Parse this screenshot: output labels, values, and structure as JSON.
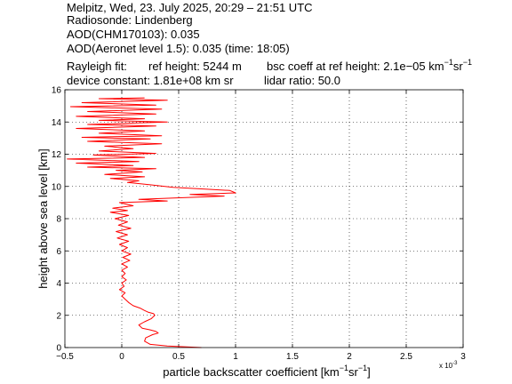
{
  "header": {
    "line1": "Melpitz, Wed, 23. July 2025, 20:29 – 21:51 UTC",
    "line2": "Radiosonde: Lindenberg",
    "line3": "AOD(CHM170103): 0.035",
    "line4": "AOD(Aeronet level 1.5): 0.035   (time: 18:05)",
    "rayleigh_label": "Rayleigh fit:",
    "ref_height": "ref height: 5244 m",
    "bsc_coeff_prefix": "bsc coeff at ref height: 2.1e−05 km",
    "bsc_coeff_sup1": "−1",
    "bsc_coeff_mid": "sr",
    "bsc_coeff_sup2": "−1",
    "device_constant": "device constant: 1.81e+08 km sr",
    "lidar_ratio": "lidar ratio: 50.0"
  },
  "chart_data": {
    "type": "line",
    "xlabel_main": "particle backscatter coefficient [km",
    "xlabel_sup1": "−1",
    "xlabel_mid": "sr",
    "xlabel_sup2": "−1",
    "xlabel_end": "]",
    "ylabel": "height above sea level [km]",
    "x_multiplier": "x 10",
    "x_multiplier_exp": "-3",
    "xlim": [
      -0.5,
      3
    ],
    "ylim": [
      0,
      16
    ],
    "grid": true,
    "x_ticks": [
      -0.5,
      0,
      0.5,
      1,
      1.5,
      2,
      2.5,
      3
    ],
    "x_tick_labels": [
      "−0.5",
      "0",
      "0.5",
      "1",
      "1.5",
      "2",
      "2.5",
      "3"
    ],
    "y_ticks": [
      0,
      2,
      4,
      6,
      8,
      10,
      12,
      14,
      16
    ],
    "y_tick_labels": [
      "0",
      "2",
      "4",
      "6",
      "8",
      "10",
      "12",
      "14",
      "16"
    ],
    "series": [
      {
        "color": "#ff0000",
        "points": [
          [
            0.7,
            0.0
          ],
          [
            0.4,
            0.1
          ],
          [
            0.25,
            0.2
          ],
          [
            0.2,
            0.4
          ],
          [
            0.21,
            0.6
          ],
          [
            0.27,
            0.8
          ],
          [
            0.32,
            0.9
          ],
          [
            0.3,
            1.0
          ],
          [
            0.25,
            1.1
          ],
          [
            0.18,
            1.2
          ],
          [
            0.15,
            1.4
          ],
          [
            0.2,
            1.6
          ],
          [
            0.26,
            1.8
          ],
          [
            0.29,
            2.0
          ],
          [
            0.28,
            2.1
          ],
          [
            0.23,
            2.2
          ],
          [
            0.2,
            2.3
          ],
          [
            0.16,
            2.45
          ],
          [
            0.1,
            2.6
          ],
          [
            0.06,
            2.8
          ],
          [
            0.03,
            3.0
          ],
          [
            0.0,
            3.2
          ],
          [
            0.03,
            3.4
          ],
          [
            -0.02,
            3.6
          ],
          [
            0.02,
            3.8
          ],
          [
            0.0,
            4.0
          ],
          [
            0.04,
            4.2
          ],
          [
            0.0,
            4.4
          ],
          [
            0.03,
            4.6
          ],
          [
            0.0,
            4.8
          ],
          [
            0.05,
            5.0
          ],
          [
            0.0,
            5.2
          ],
          [
            0.07,
            5.4
          ],
          [
            0.01,
            5.6
          ],
          [
            0.08,
            5.8
          ],
          [
            0.0,
            6.0
          ],
          [
            0.05,
            6.2
          ],
          [
            -0.02,
            6.4
          ],
          [
            0.06,
            6.6
          ],
          [
            -0.04,
            6.8
          ],
          [
            0.05,
            7.0
          ],
          [
            -0.05,
            7.2
          ],
          [
            0.08,
            7.4
          ],
          [
            -0.03,
            7.6
          ],
          [
            0.05,
            7.8
          ],
          [
            -0.06,
            8.0
          ],
          [
            0.06,
            8.2
          ],
          [
            -0.1,
            8.4
          ],
          [
            0.05,
            8.5
          ],
          [
            -0.08,
            8.65
          ],
          [
            0.1,
            8.8
          ],
          [
            -0.02,
            9.0
          ],
          [
            0.4,
            9.1
          ],
          [
            0.15,
            9.2
          ],
          [
            0.9,
            9.4
          ],
          [
            0.6,
            9.5
          ],
          [
            1.0,
            9.6
          ],
          [
            0.95,
            9.75
          ],
          [
            0.7,
            9.85
          ],
          [
            0.45,
            9.95
          ],
          [
            0.25,
            10.1
          ],
          [
            0.05,
            10.25
          ],
          [
            0.15,
            10.35
          ],
          [
            -0.1,
            10.5
          ],
          [
            0.2,
            10.6
          ],
          [
            -0.15,
            10.75
          ],
          [
            0.18,
            10.9
          ],
          [
            -0.05,
            11.0
          ],
          [
            0.3,
            11.1
          ],
          [
            -0.3,
            11.2
          ],
          [
            0.1,
            11.3
          ],
          [
            -0.4,
            11.45
          ],
          [
            0.15,
            11.55
          ],
          [
            -0.48,
            11.7
          ],
          [
            0.2,
            11.8
          ],
          [
            -0.25,
            11.95
          ],
          [
            0.3,
            12.05
          ],
          [
            -0.2,
            12.2
          ],
          [
            0.1,
            12.35
          ],
          [
            -0.15,
            12.5
          ],
          [
            0.35,
            12.65
          ],
          [
            -0.3,
            12.8
          ],
          [
            0.25,
            12.95
          ],
          [
            -0.35,
            13.05
          ],
          [
            0.35,
            13.15
          ],
          [
            -0.2,
            13.3
          ],
          [
            0.2,
            13.45
          ],
          [
            -0.4,
            13.6
          ],
          [
            0.3,
            13.75
          ],
          [
            -0.3,
            13.85
          ],
          [
            0.4,
            14.0
          ],
          [
            -0.2,
            14.1
          ],
          [
            0.2,
            14.2
          ],
          [
            -0.4,
            14.35
          ],
          [
            0.3,
            14.5
          ],
          [
            -0.3,
            14.65
          ],
          [
            0.35,
            14.8
          ],
          [
            -0.45,
            14.95
          ],
          [
            0.3,
            15.05
          ],
          [
            -0.35,
            15.2
          ],
          [
            0.4,
            15.35
          ],
          [
            -0.2,
            15.45
          ],
          [
            0.2,
            15.5
          ]
        ]
      }
    ]
  }
}
